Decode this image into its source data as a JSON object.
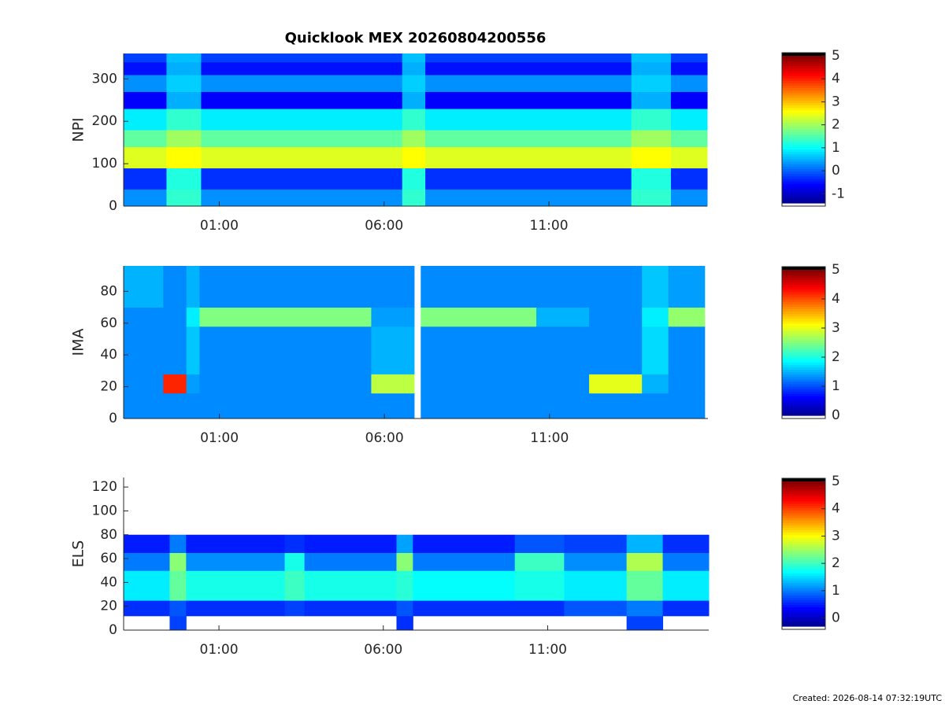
{
  "chart_data": [
    {
      "type": "heatmap",
      "title": "Quicklook MEX 20260804200556",
      "ylabel": "NPI",
      "xlim": [
        -1.9,
        15.8
      ],
      "xticks": [
        {
          "value": 1,
          "label": "01:00"
        },
        {
          "value": 6,
          "label": "06:00"
        },
        {
          "value": 11,
          "label": "11:00"
        }
      ],
      "ylim": [
        0,
        360
      ],
      "yticks": [
        0,
        100,
        200,
        300
      ],
      "xbins": [
        -1.9,
        -0.6,
        0.45,
        6.55,
        7.25,
        13.5,
        14.7,
        15.8
      ],
      "ybins": [
        0,
        40,
        90,
        140,
        180,
        230,
        270,
        310,
        340,
        360
      ],
      "z": [
        [
          0.3,
          -0.3,
          2.4,
          1.6,
          0.9,
          -0.6,
          0.3,
          -0.5,
          -0.2
        ],
        [
          1.3,
          1.2,
          2.6,
          2.0,
          1.3,
          0.5,
          0.7,
          0.5,
          0.6
        ],
        [
          0.3,
          -0.3,
          2.4,
          1.6,
          0.9,
          -0.6,
          0.3,
          -0.5,
          -0.2
        ],
        [
          1.3,
          1.2,
          2.6,
          2.0,
          1.3,
          0.5,
          0.7,
          0.5,
          0.6
        ],
        [
          0.3,
          -0.3,
          2.4,
          1.6,
          0.9,
          -0.6,
          0.3,
          -0.5,
          -0.2
        ],
        [
          1.3,
          1.2,
          2.6,
          2.0,
          1.3,
          0.5,
          0.7,
          0.5,
          0.6
        ],
        [
          0.3,
          -0.3,
          2.4,
          1.6,
          0.9,
          -0.6,
          0.3,
          -0.5,
          -0.2
        ]
      ],
      "clim": [
        -1.4,
        5
      ],
      "cticks": [
        {
          "value": -1,
          "label": "-1"
        },
        0,
        1,
        2,
        3,
        4,
        5
      ],
      "colormap": [
        "#00008f",
        "#0000ff",
        "#0080ff",
        "#00ffff",
        "#80ff80",
        "#ffff00",
        "#ff8000",
        "#ff0000",
        "#800000"
      ],
      "under_color": "#ffffff",
      "over_color": "#000000"
    },
    {
      "type": "heatmap",
      "ylabel": "IMA",
      "xlim": [
        -1.9,
        15.8
      ],
      "xticks": [
        {
          "value": 1,
          "label": "01:00"
        },
        {
          "value": 6,
          "label": "06:00"
        },
        {
          "value": 11,
          "label": "11:00"
        }
      ],
      "ylim": [
        0,
        96
      ],
      "yticks": [
        0,
        20,
        40,
        60,
        80
      ],
      "xbins": [
        -1.9,
        -0.7,
        0.0,
        0.4,
        5.6,
        6.9,
        7.1,
        10.6,
        12.2,
        13.8,
        14.6,
        15.7
      ],
      "ybins": [
        0,
        16,
        28,
        58,
        70,
        96
      ],
      "z": [
        [
          1.3,
          1.3,
          1.3,
          1.3,
          1.5
        ],
        [
          1.3,
          4.2,
          1.3,
          1.3,
          1.3
        ],
        [
          1.3,
          1.4,
          1.6,
          1.8,
          1.5
        ],
        [
          1.3,
          1.3,
          1.3,
          2.5,
          1.3
        ],
        [
          1.3,
          2.8,
          1.5,
          1.4,
          1.3
        ],
        [
          null,
          null,
          null,
          null,
          null
        ],
        [
          1.3,
          1.3,
          1.3,
          2.5,
          1.3
        ],
        [
          1.3,
          1.3,
          1.3,
          1.5,
          1.3
        ],
        [
          1.3,
          3.0,
          1.3,
          1.3,
          1.3
        ],
        [
          1.3,
          1.5,
          1.7,
          1.8,
          1.6
        ],
        [
          1.3,
          1.3,
          1.3,
          2.6,
          1.4
        ]
      ],
      "clim": [
        0,
        5
      ],
      "cticks": [
        0,
        1,
        2,
        3,
        4,
        5
      ],
      "colormap": [
        "#00008f",
        "#0000ff",
        "#0080ff",
        "#00ffff",
        "#80ff80",
        "#ffff00",
        "#ff8000",
        "#ff0000",
        "#800000"
      ],
      "under_color": "#ffffff",
      "over_color": "#000000"
    },
    {
      "type": "heatmap",
      "ylabel": "ELS",
      "xlim": [
        -1.9,
        15.9
      ],
      "xticks": [
        {
          "value": 1,
          "label": "01:00"
        },
        {
          "value": 6,
          "label": "06:00"
        },
        {
          "value": 11,
          "label": "11:00"
        }
      ],
      "ylim": [
        0,
        128
      ],
      "yticks": [
        0,
        20,
        40,
        60,
        80,
        100,
        120
      ],
      "xbins": [
        -1.9,
        -0.5,
        0.0,
        3.0,
        3.6,
        6.4,
        6.9,
        10.0,
        11.5,
        13.4,
        14.5,
        15.9
      ],
      "ybins": [
        0,
        12,
        25,
        50,
        65,
        80,
        128
      ],
      "z": [
        [
          null,
          0.6,
          1.6,
          1.0,
          0.5,
          null
        ],
        [
          0.7,
          0.8,
          2.2,
          2.4,
          1.0,
          null
        ],
        [
          null,
          0.6,
          1.8,
          1.1,
          0.5,
          null
        ],
        [
          null,
          0.7,
          2.0,
          1.8,
          0.6,
          null
        ],
        [
          null,
          0.6,
          1.8,
          1.0,
          0.5,
          null
        ],
        [
          0.6,
          0.8,
          1.9,
          2.4,
          1.2,
          null
        ],
        [
          null,
          0.6,
          1.7,
          1.0,
          0.5,
          null
        ],
        [
          null,
          0.6,
          1.8,
          2.0,
          0.8,
          null
        ],
        [
          null,
          0.8,
          1.6,
          1.1,
          0.7,
          null
        ],
        [
          0.7,
          1.0,
          2.2,
          2.6,
          1.3,
          null
        ],
        [
          null,
          0.6,
          1.6,
          1.0,
          0.6,
          null
        ]
      ],
      "clim": [
        -0.3,
        5
      ],
      "cticks": [
        0,
        1,
        2,
        3,
        4,
        5
      ],
      "colormap": [
        "#00008f",
        "#0000ff",
        "#0080ff",
        "#00ffff",
        "#80ff80",
        "#ffff00",
        "#ff8000",
        "#ff0000",
        "#800000"
      ],
      "under_color": "#ffffff",
      "over_color": "#000000"
    }
  ],
  "footer": "Created: 2026-08-14 07:32:19UTC"
}
